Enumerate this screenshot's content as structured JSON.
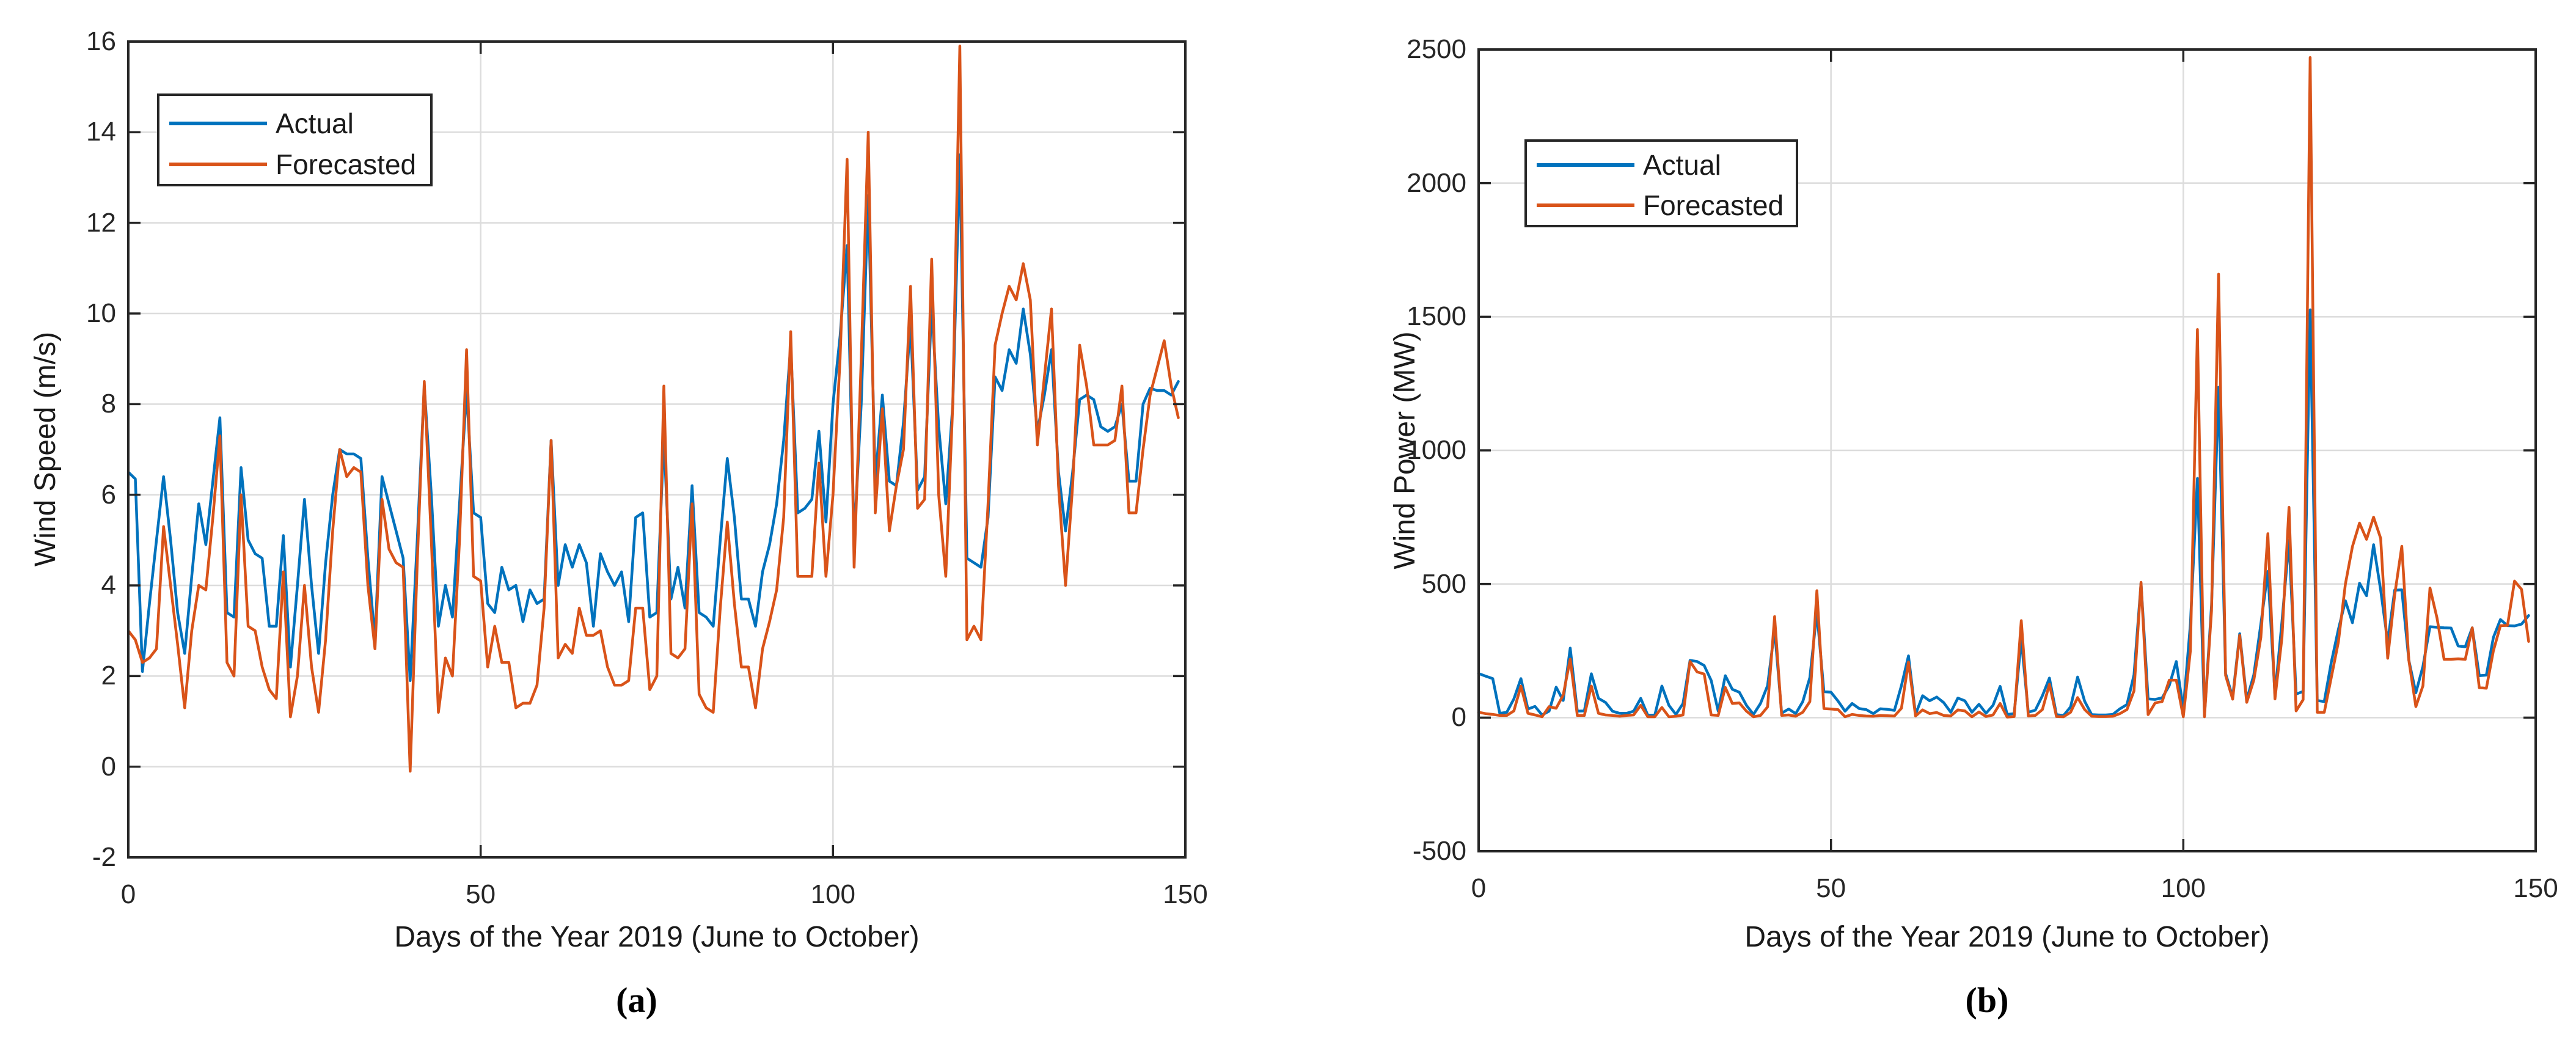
{
  "figure": {
    "background": "#ffffff",
    "description": "Two-panel line figure comparing actual vs forecasted wind speed (a) and wind power (b)"
  },
  "colors": {
    "actual": "#0072BD",
    "forecasted": "#D95319",
    "axis": "#262626",
    "grid": "#dcdcdc",
    "tick_text": "#262626"
  },
  "panels": [
    {
      "id": "a",
      "ylabel": "Wind Speed (m/s)",
      "xlabel": "Days of the Year 2019 (June to October)",
      "sublabel": "(a)",
      "y_tick_labels": [
        "-2",
        "0",
        "2",
        "4",
        "6",
        "8",
        "10",
        "12",
        "14",
        "16"
      ],
      "y_tick_values": [
        -2,
        0,
        2,
        4,
        6,
        8,
        10,
        12,
        14,
        16
      ],
      "x_tick_labels": [
        "0",
        "50",
        "100",
        "150"
      ],
      "x_tick_values": [
        0,
        50,
        100,
        150
      ],
      "xlim": [
        0,
        150
      ],
      "ylim": [
        -2,
        16
      ],
      "grid": true,
      "legend": {
        "position": "upper-left",
        "entries": [
          "Actual",
          "Forecasted"
        ]
      }
    },
    {
      "id": "b",
      "ylabel": "Wind Power (MW)",
      "xlabel": "Days of the Year 2019 (June to October)",
      "sublabel": "(b)",
      "y_tick_labels": [
        "-500",
        "0",
        "500",
        "1000",
        "1500",
        "2000",
        "2500"
      ],
      "y_tick_values": [
        -500,
        0,
        500,
        1000,
        1500,
        2000,
        2500
      ],
      "x_tick_labels": [
        "0",
        "50",
        "100",
        "150"
      ],
      "x_tick_values": [
        0,
        50,
        100,
        150
      ],
      "xlim": [
        0,
        150
      ],
      "ylim": [
        -500,
        2500
      ],
      "grid": true,
      "legend": {
        "position": "upper-left",
        "entries": [
          "Actual",
          "Forecasted"
        ]
      }
    }
  ],
  "chart_data": [
    {
      "type": "line",
      "title": "",
      "xlabel": "Days of the Year 2019 (June to October)",
      "ylabel": "Wind Speed (m/s)",
      "xlim": [
        0,
        150
      ],
      "ylim": [
        -2,
        16
      ],
      "x_start": 0,
      "x_step": 1,
      "grid": true,
      "legend_position": "upper-left",
      "series": [
        {
          "name": "Actual",
          "color": "#0072BD",
          "values": [
            6.5,
            6.35,
            2.1,
            3.6,
            5.0,
            6.4,
            5.0,
            3.4,
            2.5,
            4.2,
            5.8,
            4.9,
            6.3,
            7.7,
            3.4,
            3.3,
            6.6,
            5.0,
            4.7,
            4.6,
            3.1,
            3.1,
            5.1,
            2.2,
            4.0,
            5.9,
            4.0,
            2.5,
            4.5,
            6.0,
            7.0,
            6.9,
            6.9,
            6.8,
            4.6,
            2.8,
            6.4,
            5.8,
            5.2,
            4.6,
            1.9,
            5.0,
            8.4,
            6.0,
            3.1,
            4.0,
            3.3,
            5.8,
            8.3,
            5.6,
            5.5,
            3.6,
            3.4,
            4.4,
            3.9,
            4.0,
            3.2,
            3.9,
            3.6,
            3.7,
            7.2,
            4.0,
            4.9,
            4.4,
            4.9,
            4.5,
            3.1,
            4.7,
            4.3,
            4.0,
            4.3,
            3.2,
            5.5,
            5.6,
            3.3,
            3.4,
            7.3,
            3.7,
            4.4,
            3.5,
            6.2,
            3.4,
            3.3,
            3.1,
            5.0,
            6.8,
            5.5,
            3.7,
            3.7,
            3.1,
            4.3,
            4.9,
            5.8,
            7.2,
            9.3,
            5.6,
            5.7,
            5.9,
            7.4,
            5.4,
            8.0,
            9.5,
            11.5,
            5.0,
            8.0,
            12.6,
            6.3,
            8.2,
            6.3,
            6.2,
            7.6,
            9.8,
            6.1,
            6.4,
            10.2,
            7.5,
            5.8,
            8.0,
            13.5,
            4.6,
            4.5,
            4.4,
            5.5,
            8.6,
            8.3,
            9.2,
            8.9,
            10.1,
            9.1,
            7.4,
            8.2,
            9.2,
            6.5,
            5.2,
            6.5,
            8.1,
            8.2,
            8.1,
            7.5,
            7.4,
            7.5,
            8.0,
            6.3,
            6.3,
            8.0,
            8.35,
            8.3,
            8.3,
            8.2,
            8.5
          ]
        },
        {
          "name": "Forecasted",
          "color": "#D95319",
          "values": [
            3.0,
            2.8,
            2.3,
            2.4,
            2.6,
            5.3,
            4.0,
            2.7,
            1.3,
            3.0,
            4.0,
            3.9,
            5.5,
            7.3,
            2.3,
            2.0,
            6.0,
            3.1,
            3.0,
            2.2,
            1.7,
            1.5,
            4.3,
            1.1,
            2.0,
            4.0,
            2.2,
            1.2,
            2.8,
            5.2,
            7.0,
            6.4,
            6.6,
            6.5,
            4.0,
            2.6,
            5.9,
            4.8,
            4.5,
            4.4,
            -0.1,
            4.5,
            8.5,
            5.0,
            1.2,
            2.4,
            2.0,
            5.0,
            9.2,
            4.2,
            4.1,
            2.2,
            3.1,
            2.3,
            2.3,
            1.3,
            1.4,
            1.4,
            1.8,
            3.5,
            7.2,
            2.4,
            2.7,
            2.5,
            3.5,
            2.9,
            2.9,
            3.0,
            2.2,
            1.8,
            1.8,
            1.9,
            3.5,
            3.5,
            1.7,
            2.0,
            8.4,
            2.5,
            2.4,
            2.6,
            5.8,
            1.6,
            1.3,
            1.2,
            3.5,
            5.4,
            3.6,
            2.2,
            2.2,
            1.3,
            2.6,
            3.2,
            3.9,
            5.5,
            9.6,
            4.2,
            4.2,
            4.2,
            6.7,
            4.2,
            6.0,
            9.0,
            13.4,
            4.4,
            9.0,
            14.0,
            5.6,
            7.9,
            5.2,
            6.2,
            7.0,
            10.6,
            5.7,
            5.9,
            11.2,
            6.0,
            4.2,
            8.0,
            15.9,
            2.8,
            3.1,
            2.8,
            5.8,
            9.3,
            10.0,
            10.6,
            10.3,
            11.1,
            10.3,
            7.1,
            8.6,
            10.1,
            6.2,
            4.0,
            6.2,
            9.3,
            8.4,
            7.1,
            7.1,
            7.1,
            7.2,
            8.4,
            5.6,
            5.6,
            7.0,
            8.2,
            8.8,
            9.4,
            8.4,
            7.7
          ]
        }
      ]
    },
    {
      "type": "line",
      "title": "",
      "xlabel": "Days of the Year 2019 (June to October)",
      "ylabel": "Wind Power (MW)",
      "xlim": [
        0,
        150
      ],
      "ylim": [
        -500,
        2500
      ],
      "x_start": 0,
      "x_step": 1,
      "grid": true,
      "legend_position": "upper-left",
      "series": [
        {
          "name": "Actual",
          "color": "#0072BD",
          "values": [
            165,
            155,
            146,
            16,
            20,
            70,
            146,
            32,
            42,
            10,
            24,
            114,
            64,
            260,
            24,
            25,
            164,
            72,
            57,
            24,
            16,
            16,
            24,
            72,
            9,
            9,
            118,
            46,
            12,
            53,
            214,
            210,
            195,
            139,
            24,
            157,
            106,
            95,
            46,
            12,
            53,
            120,
            330,
            17,
            32,
            15,
            60,
            150,
            395,
            97,
            95,
            62,
            24,
            53,
            34,
            30,
            15,
            33,
            31,
            27,
            120,
            231,
            12,
            82,
            63,
            77,
            56,
            20,
            73,
            63,
            20,
            50,
            16,
            46,
            117,
            12,
            15,
            293,
            20,
            28,
            82,
            148,
            11,
            8,
            40,
            152,
            61,
            11,
            10,
            10,
            12,
            33,
            49,
            160,
            503,
            70,
            68,
            74,
            120,
            210,
            30,
            350,
            895,
            7,
            420,
            1236,
            165,
            77,
            314,
            67,
            160,
            350,
            547,
            85,
            360,
            663,
            88,
            98,
            1526,
            64,
            60,
            207,
            330,
            437,
            355,
            503,
            456,
            647,
            477,
            283,
            477,
            478,
            215,
            93,
            192,
            340,
            338,
            336,
            335,
            268,
            265,
            336,
            157,
            159,
            300,
            367,
            344,
            343,
            350,
            382
          ]
        },
        {
          "name": "Forecasted",
          "color": "#D95319",
          "values": [
            20,
            15,
            12,
            8,
            8,
            25,
            118,
            16,
            10,
            3,
            41,
            35,
            84,
            219,
            8,
            8,
            118,
            16,
            10,
            8,
            5,
            8,
            10,
            46,
            3,
            3,
            38,
            3,
            5,
            10,
            210,
            171,
            163,
            10,
            8,
            113,
            53,
            55,
            24,
            3,
            8,
            40,
            378,
            8,
            10,
            5,
            20,
            60,
            475,
            34,
            32,
            30,
            3,
            12,
            8,
            6,
            5,
            8,
            7,
            6,
            35,
            208,
            6,
            29,
            15,
            19,
            8,
            6,
            29,
            25,
            3,
            21,
            4,
            10,
            53,
            2,
            4,
            363,
            6,
            8,
            30,
            125,
            4,
            3,
            20,
            75,
            30,
            5,
            4,
            4,
            5,
            15,
            30,
            100,
            506,
            11,
            55,
            60,
            140,
            140,
            3,
            250,
            1452,
            3,
            400,
            1659,
            158,
            69,
            308,
            57,
            140,
            300,
            688,
            70,
            300,
            787,
            25,
            67,
            2470,
            20,
            20,
            150,
            283,
            500,
            640,
            728,
            667,
            750,
            671,
            222,
            460,
            641,
            215,
            41,
            119,
            485,
            373,
            218,
            218,
            220,
            218,
            336,
            112,
            110,
            250,
            344,
            345,
            511,
            480,
            285
          ]
        }
      ]
    }
  ]
}
